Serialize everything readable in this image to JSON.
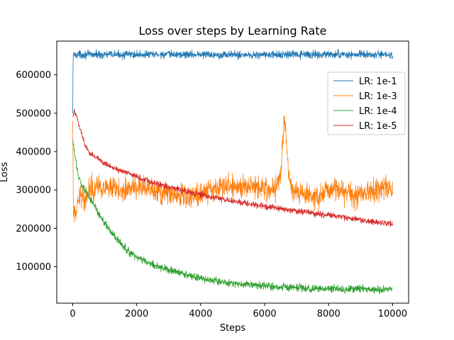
{
  "chart_data": {
    "type": "line",
    "title": "Loss over steps by Learning Rate",
    "xlabel": "Steps",
    "ylabel": "Loss",
    "xlim": [
      -500,
      10500
    ],
    "ylim": [
      5000,
      688000
    ],
    "xticks": [
      0,
      2000,
      4000,
      6000,
      8000,
      10000
    ],
    "yticks": [
      100000,
      200000,
      300000,
      400000,
      500000,
      600000
    ],
    "grid": false,
    "legend_position": "upper right",
    "series": [
      {
        "name": "LR: 1e-1",
        "color": "#1f77b4",
        "noise": 5000,
        "x": [
          0,
          10,
          20,
          100,
          2000,
          4000,
          6000,
          8000,
          10000
        ],
        "y": [
          500000,
          650000,
          652000,
          653000,
          653000,
          653000,
          652000,
          653000,
          652000
        ]
      },
      {
        "name": "LR: 1e-3",
        "color": "#ff7f0e",
        "noise": 15000,
        "x": [
          0,
          20,
          80,
          150,
          250,
          350,
          450,
          550,
          650,
          750,
          1000,
          1500,
          2000,
          2500,
          3000,
          3500,
          3900,
          4200,
          4500,
          4800,
          5100,
          5500,
          6000,
          6300,
          6500,
          6600,
          6650,
          6750,
          6900,
          7200,
          7500,
          7800,
          8000,
          8200,
          8500,
          8800,
          9200,
          9500,
          9800,
          10000
        ],
        "y": [
          480000,
          230000,
          240000,
          250000,
          300000,
          270000,
          290000,
          310000,
          300000,
          320000,
          300000,
          300000,
          310000,
          295000,
          290000,
          285000,
          285000,
          300000,
          305000,
          310000,
          305000,
          315000,
          305000,
          300000,
          340000,
          470000,
          480000,
          330000,
          295000,
          290000,
          280000,
          285000,
          300000,
          310000,
          295000,
          285000,
          295000,
          300000,
          305000,
          300000
        ]
      },
      {
        "name": "LR: 1e-4",
        "color": "#2ca02c",
        "noise": 5000,
        "x": [
          0,
          100,
          200,
          300,
          400,
          600,
          800,
          1000,
          1200,
          1400,
          1600,
          1800,
          2000,
          2500,
          3000,
          3500,
          4000,
          4500,
          5000,
          5500,
          6000,
          6500,
          7000,
          7500,
          8000,
          8500,
          9000,
          9500,
          10000
        ],
        "y": [
          430000,
          370000,
          330000,
          310000,
          300000,
          270000,
          240000,
          215000,
          190000,
          170000,
          150000,
          135000,
          125000,
          105000,
          92000,
          80000,
          70000,
          62000,
          57000,
          53000,
          50000,
          47000,
          45000,
          43000,
          42000,
          41000,
          42000,
          41000,
          41000
        ]
      },
      {
        "name": "LR: 1e-5",
        "color": "#d62728",
        "noise": 4000,
        "x": [
          0,
          50,
          100,
          200,
          300,
          400,
          500,
          700,
          1000,
          1500,
          2000,
          2500,
          3000,
          3500,
          4000,
          4500,
          5000,
          5500,
          6000,
          6500,
          7000,
          7500,
          8000,
          8500,
          9000,
          9500,
          10000
        ],
        "y": [
          490000,
          505000,
          495000,
          470000,
          440000,
          415000,
          400000,
          385000,
          370000,
          350000,
          335000,
          320000,
          308000,
          297000,
          287000,
          279000,
          271000,
          264000,
          257000,
          251000,
          245000,
          239000,
          234000,
          228000,
          222000,
          216000,
          211000
        ]
      }
    ]
  }
}
